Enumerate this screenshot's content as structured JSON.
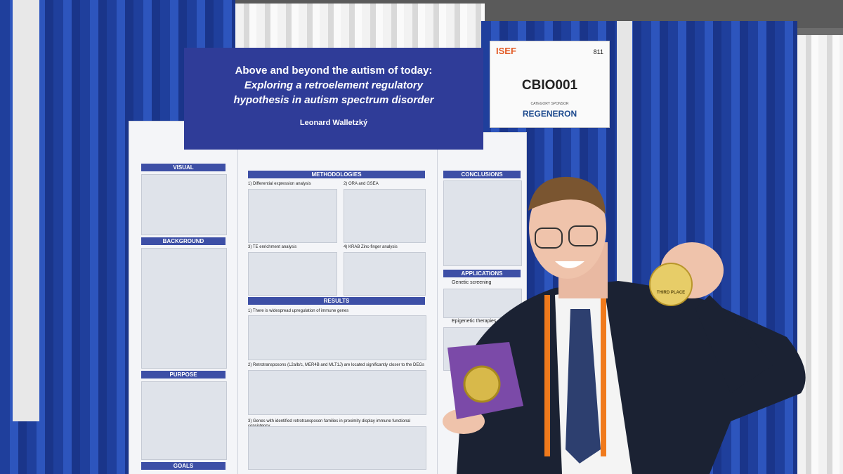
{
  "banner": {
    "title_lines": [
      "Above and beyond the autism of today:",
      "Exploring a retroelement regulatory",
      "hypothesis in autism spectrum disorder"
    ],
    "author": "Leonard Walletzký"
  },
  "sign": {
    "booth": "811",
    "logo": "ISEF",
    "code": "CBIO001",
    "sponsor_label": "CATEGORY SPONSOR",
    "sponsor": "REGENERON"
  },
  "poster": {
    "left_sections": [
      "VISUAL",
      "BACKGROUND",
      "PURPOSE",
      "GOALS"
    ],
    "center_headers": [
      "METHODOLOGIES",
      "RESULTS"
    ],
    "methods": [
      "1) Differential expression analysis",
      "2) ORA and GSEA",
      "3) TE enrichment analysis",
      "4) KRAB Zinc-finger analysis"
    ],
    "results": [
      "1) There is widespread upregulation of immune genes",
      "2) Retrotransposons (L2a/b/c, MER4B and MLT1J) are located significantly closer to the DEGs",
      "3) Genes with identified retrotransposon families in proximity display immune functional consistency"
    ],
    "right_sections": [
      "CONCLUSIONS",
      "APPLICATIONS"
    ],
    "applications": [
      "Genetic screening",
      "Epigenetic therapies"
    ]
  },
  "medal": {
    "text": "THIRD PLACE"
  }
}
